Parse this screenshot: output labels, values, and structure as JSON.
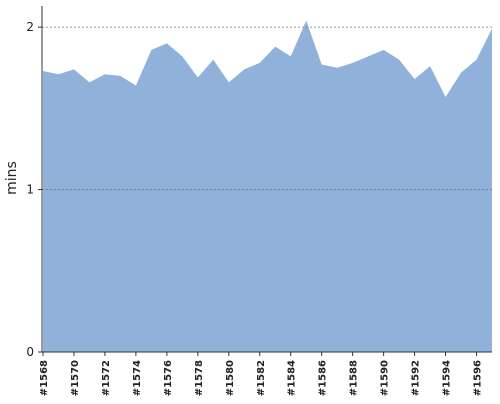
{
  "chart_data": {
    "type": "area",
    "y_label": "mins",
    "categories": [
      "#1568",
      null,
      "#1570",
      null,
      "#1572",
      null,
      "#1574",
      null,
      "#1576",
      null,
      "#1578",
      null,
      "#1580",
      null,
      "#1582",
      null,
      "#1584",
      null,
      "#1586",
      null,
      "#1588",
      null,
      "#1590",
      null,
      "#1592",
      null,
      "#1594",
      null,
      "#1596",
      null
    ],
    "values": [
      1.73,
      1.71,
      1.74,
      1.66,
      1.71,
      1.7,
      1.64,
      1.86,
      1.9,
      1.82,
      1.69,
      1.8,
      1.66,
      1.74,
      1.78,
      1.88,
      1.82,
      2.04,
      1.77,
      1.75,
      1.78,
      1.82,
      1.86,
      1.8,
      1.68,
      1.76,
      1.57,
      1.72,
      1.8,
      1.99
    ],
    "color": "#8fb1da",
    "ylim": [
      0,
      2.13
    ],
    "yticks": [
      0,
      1,
      2
    ],
    "grid": true
  }
}
